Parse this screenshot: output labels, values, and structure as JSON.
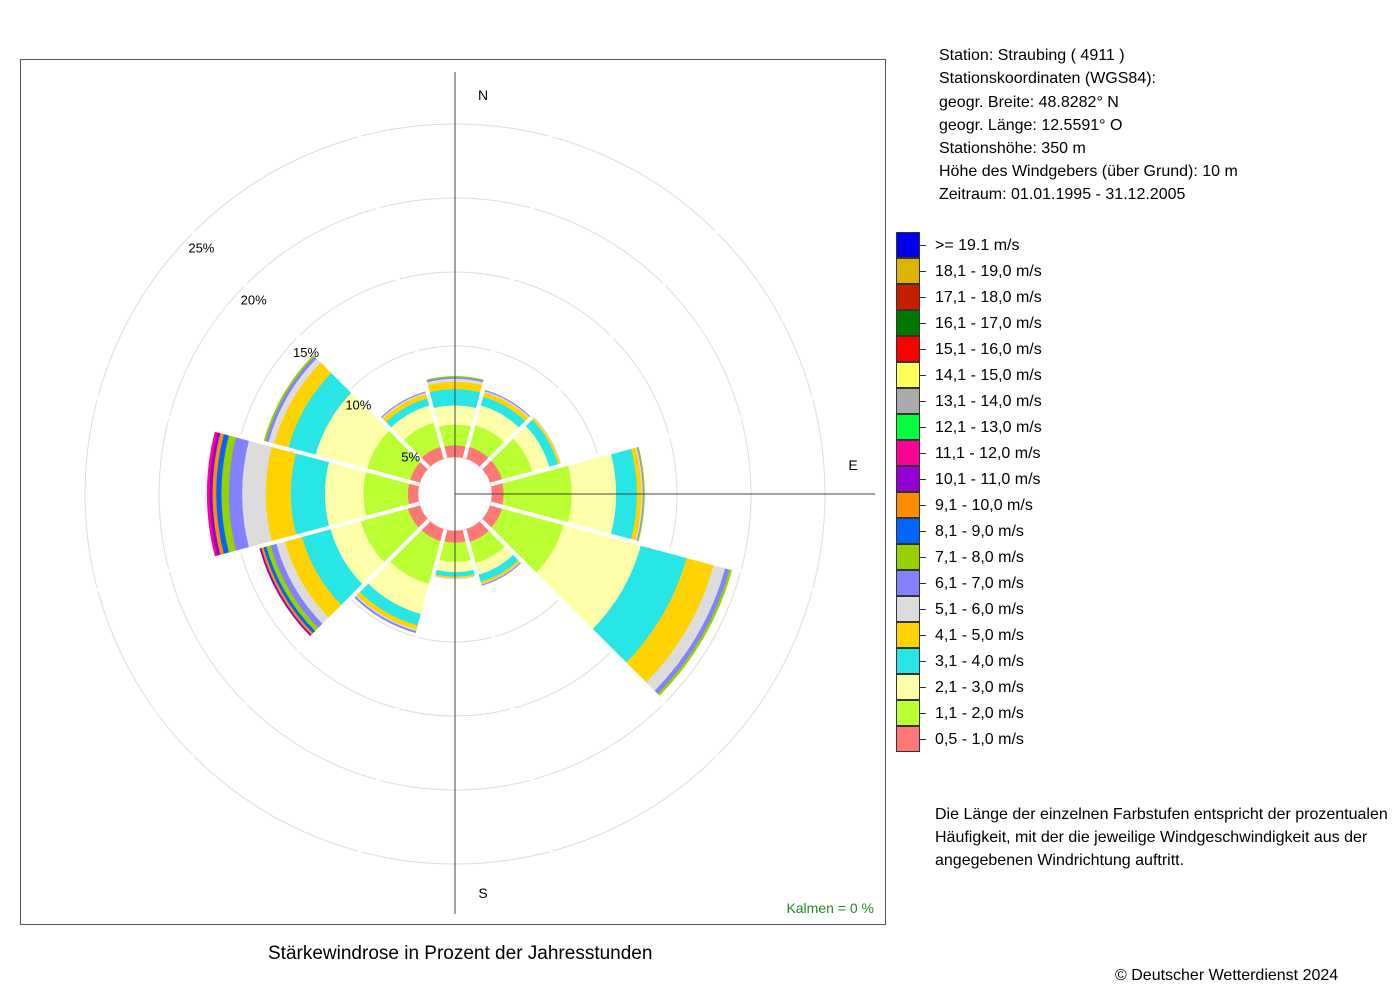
{
  "station": {
    "station_line": "Station:  Straubing  ( 4911 )",
    "coords_title": "Stationskoordinaten (WGS84):",
    "lat_line": "geogr. Breite: 48.8282° N",
    "lon_line": "geogr. Länge: 12.5591° O",
    "height_line": "Stationshöhe: 350 m",
    "sensor_line": "Höhe des Windgebers (über Grund): 10 m",
    "period_line": "Zeitraum: 01.01.1995 - 31.12.2005"
  },
  "note": {
    "line1": "Die Länge der einzelnen Farbstufen entspricht der prozentualen",
    "line2": "Häufigkeit, mit der die jeweilige Windgeschwindigkeit aus der",
    "line3": "angegebenen Windrichtung auftritt."
  },
  "caption": "Stärkewindrose in Prozent der Jahresstunden",
  "copyright": "© Deutscher Wetterdienst  2024",
  "chart_data": {
    "type": "wind-rose",
    "title": "Stärkewindrose in Prozent der Jahresstunden",
    "radial_ticks": [
      "5%",
      "10%",
      "15%",
      "20%",
      "25%"
    ],
    "radial_tick_values": [
      5,
      10,
      15,
      20,
      25
    ],
    "compass_labels": [
      "N",
      "E",
      "S"
    ],
    "calm_label": "Kalmen  =  0 %",
    "hole_radius_percent": 2.5,
    "sector_width_deg": 30,
    "grid": true,
    "legend": [
      {
        "label": ">= 19.1 m/s",
        "color": "#0000ee"
      },
      {
        "label": "18,1 - 19,0 m/s",
        "color": "#dcb400"
      },
      {
        "label": "17,1 - 18,0 m/s",
        "color": "#c81e00"
      },
      {
        "label": "16,1 - 17,0 m/s",
        "color": "#007800"
      },
      {
        "label": "15,1 - 16,0 m/s",
        "color": "#ff0000"
      },
      {
        "label": "14,1 - 15,0 m/s",
        "color": "#ffff5a"
      },
      {
        "label": "13,1 - 14,0 m/s",
        "color": "#aaaaaa"
      },
      {
        "label": "12,1 - 13,0 m/s",
        "color": "#00ff3c"
      },
      {
        "label": "11,1 - 12,0 m/s",
        "color": "#ff0096"
      },
      {
        "label": "10,1 - 11,0 m/s",
        "color": "#9600d2"
      },
      {
        "label": "9,1 - 10,0 m/s",
        "color": "#ff8c00"
      },
      {
        "label": "8,1 - 9,0 m/s",
        "color": "#0064ff"
      },
      {
        "label": "7,1 - 8,0 m/s",
        "color": "#96d200"
      },
      {
        "label": "6,1 - 7,0 m/s",
        "color": "#8282ff"
      },
      {
        "label": "5,1 - 6,0 m/s",
        "color": "#dcdcdc"
      },
      {
        "label": "4,1 - 5,0 m/s",
        "color": "#ffd200"
      },
      {
        "label": "3,1 - 4,0 m/s",
        "color": "#28e6e6"
      },
      {
        "label": "2,1 - 3,0 m/s",
        "color": "#ffffaa"
      },
      {
        "label": "1,1 - 2,0 m/s",
        "color": "#b9ff32"
      },
      {
        "label": "0,5 - 1,0 m/s",
        "color": "#ff7878"
      }
    ],
    "series_order_from_center": [
      "0,5 - 1,0 m/s",
      "1,1 - 2,0 m/s",
      "2,1 - 3,0 m/s",
      "3,1 - 4,0 m/s",
      "4,1 - 5,0 m/s",
      "5,1 - 6,0 m/s",
      "6,1 - 7,0 m/s",
      "7,1 - 8,0 m/s",
      "8,1 - 9,0 m/s",
      "9,1 - 10,0 m/s",
      "10,1 - 11,0 m/s",
      "11,1 - 12,0 m/s",
      "12,1 - 13,0 m/s",
      "13,1 - 14,0 m/s",
      "14,1 - 15,0 m/s",
      "15,1 - 16,0 m/s",
      "16,1 - 17,0 m/s",
      "17,1 - 18,0 m/s",
      "18,1 - 19,0 m/s",
      ">= 19.1 m/s"
    ],
    "sectors": [
      {
        "direction_deg": 0,
        "values": [
          0.8,
          1.4,
          1.3,
          1.1,
          0.5,
          0.2,
          0.1,
          0.05
        ]
      },
      {
        "direction_deg": 30,
        "values": [
          0.85,
          1.5,
          1.4,
          0.6,
          0.3,
          0.1,
          0.05
        ]
      },
      {
        "direction_deg": 60,
        "values": [
          0.85,
          2.1,
          1.2,
          0.6,
          0.15,
          0.05
        ]
      },
      {
        "direction_deg": 90,
        "values": [
          0.8,
          4.6,
          3.0,
          1.4,
          0.3,
          0.1,
          0.05,
          0.05
        ]
      },
      {
        "direction_deg": 120,
        "values": [
          0.85,
          4.3,
          5.4,
          3.2,
          1.9,
          0.8,
          0.3,
          0.15
        ]
      },
      {
        "direction_deg": 150,
        "values": [
          0.9,
          1.5,
          0.8,
          0.5,
          0.15,
          0.05,
          0.05
        ]
      },
      {
        "direction_deg": 180,
        "values": [
          0.8,
          1.3,
          0.7,
          0.3,
          0.1,
          0.05
        ]
      },
      {
        "direction_deg": 210,
        "values": [
          0.85,
          3.0,
          2.1,
          0.8,
          0.3,
          0.1,
          0.1
        ]
      },
      {
        "direction_deg": 240,
        "values": [
          0.85,
          3.3,
          2.1,
          2.0,
          1.2,
          0.6,
          0.4,
          0.3,
          0.2,
          0.15,
          0.1
        ]
      },
      {
        "direction_deg": 270,
        "values": [
          0.7,
          3.0,
          2.6,
          2.3,
          1.7,
          1.6,
          0.9,
          0.5,
          0.35,
          0.25,
          0.2,
          0.15
        ]
      },
      {
        "direction_deg": 300,
        "values": [
          0.7,
          3.0,
          3.6,
          1.9,
          1.0,
          0.4,
          0.2,
          0.1
        ]
      },
      {
        "direction_deg": 330,
        "values": [
          0.85,
          1.7,
          1.2,
          0.5,
          0.3,
          0.1,
          0.05
        ]
      }
    ]
  }
}
